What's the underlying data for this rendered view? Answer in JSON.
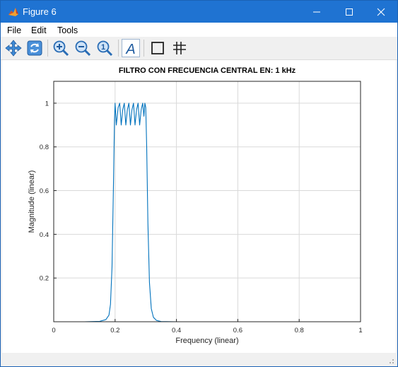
{
  "window": {
    "title": "Figure 6"
  },
  "menu": {
    "file": "File",
    "edit": "Edit",
    "tools": "Tools"
  },
  "toolbar": {
    "pan_label": "Pan",
    "rotate_label": "Rotate",
    "zoom_in_label": "Zoom In",
    "zoom_out_label": "Zoom Out",
    "zoom_reset_label": "1",
    "text_tool_label": "A",
    "axes_box_label": "Toggle Axes Box",
    "grid_label": "Toggle Grid"
  },
  "colors": {
    "titlebar": "#1f73d2",
    "line": "#0072bd",
    "grid": "#d9d9d9"
  },
  "chart_data": {
    "type": "line",
    "title": "FILTRO CON FRECUENCIA CENTRAL EN:  1 kHz",
    "xlabel": "Frequency (linear)",
    "ylabel": "Magnitude (linear)",
    "xlim": [
      0,
      1
    ],
    "ylim": [
      0,
      1.1
    ],
    "xticks": [
      0,
      0.2,
      0.4,
      0.6,
      0.8,
      1
    ],
    "xtick_labels": [
      "0",
      "0.2",
      "0.4",
      "0.6",
      "0.8",
      "1"
    ],
    "yticks": [
      0.2,
      0.4,
      0.6,
      0.8,
      1
    ],
    "ytick_labels": [
      "0.2",
      "0.4",
      "0.6",
      "0.8",
      "1"
    ],
    "grid": true,
    "series": [
      {
        "name": "magnitude",
        "x": [
          0,
          0.1,
          0.15,
          0.17,
          0.18,
          0.185,
          0.19,
          0.195,
          0.198,
          0.2,
          0.204,
          0.21,
          0.215,
          0.22,
          0.225,
          0.23,
          0.235,
          0.24,
          0.245,
          0.25,
          0.255,
          0.26,
          0.265,
          0.27,
          0.275,
          0.28,
          0.285,
          0.29,
          0.294,
          0.297,
          0.3,
          0.303,
          0.307,
          0.312,
          0.318,
          0.325,
          0.335,
          0.35,
          0.4,
          0.6,
          0.8,
          1
        ],
        "values": [
          0,
          0,
          0.002,
          0.01,
          0.03,
          0.08,
          0.25,
          0.65,
          0.92,
          1.0,
          0.9,
          0.98,
          1.0,
          0.9,
          0.97,
          1.0,
          0.9,
          0.97,
          1.0,
          0.9,
          0.97,
          1.0,
          0.9,
          0.97,
          1.0,
          0.9,
          0.97,
          1.0,
          0.94,
          1.0,
          0.98,
          0.8,
          0.45,
          0.18,
          0.06,
          0.02,
          0.006,
          0.001,
          0,
          0,
          0,
          0
        ]
      }
    ]
  }
}
